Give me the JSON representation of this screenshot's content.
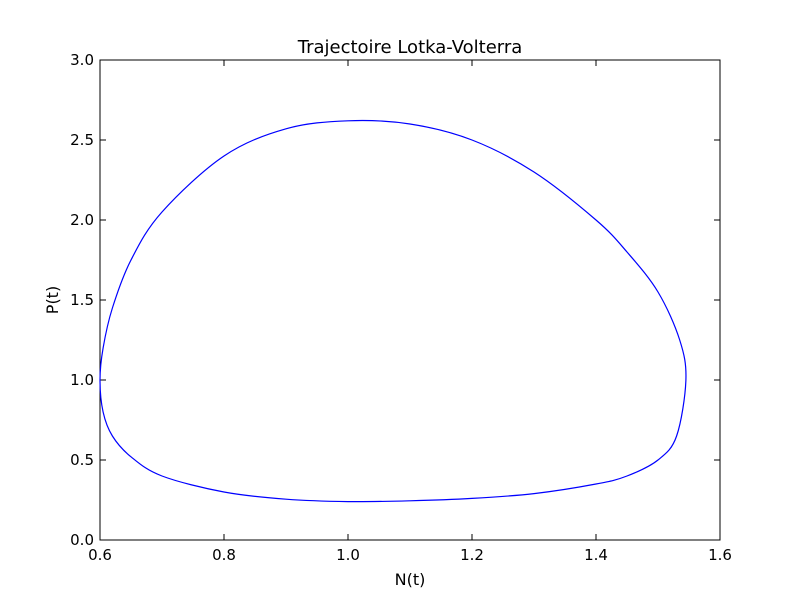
{
  "chart_data": {
    "type": "line",
    "title": "Trajectoire Lotka-Volterra",
    "xlabel": "N(t)",
    "ylabel": "P(t)",
    "xlim": [
      0.6,
      1.6
    ],
    "ylim": [
      0.0,
      3.0
    ],
    "xticks": [
      "0.6",
      "0.8",
      "1.0",
      "1.2",
      "1.4",
      "1.6"
    ],
    "yticks": [
      "0.0",
      "0.5",
      "1.0",
      "1.5",
      "2.0",
      "2.5",
      "3.0"
    ],
    "grid": false,
    "series": [
      {
        "color": "#0000ff",
        "x": [
          1.0,
          1.1,
          1.2,
          1.3,
          1.4,
          1.45,
          1.5,
          1.53,
          1.545,
          1.535,
          1.5,
          1.45,
          1.4,
          1.3,
          1.2,
          1.1,
          1.0,
          0.9,
          0.8,
          0.7,
          0.65,
          0.62,
          0.605,
          0.6,
          0.605,
          0.62,
          0.65,
          0.7,
          0.8,
          0.9,
          1.0
        ],
        "y": [
          0.24,
          0.245,
          0.26,
          0.29,
          0.35,
          0.4,
          0.5,
          0.65,
          1.0,
          1.25,
          1.55,
          1.8,
          2.0,
          2.3,
          2.5,
          2.6,
          2.62,
          2.57,
          2.4,
          2.05,
          1.75,
          1.45,
          1.2,
          1.0,
          0.8,
          0.65,
          0.52,
          0.4,
          0.3,
          0.255,
          0.24
        ]
      }
    ]
  }
}
